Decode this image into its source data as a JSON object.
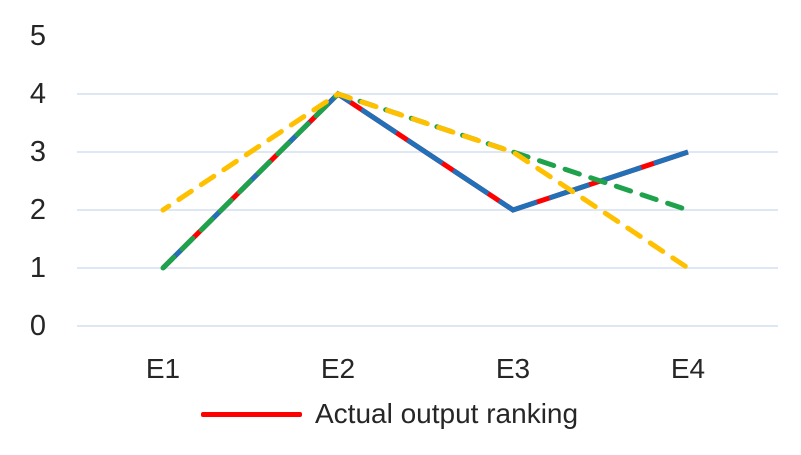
{
  "chart_data": {
    "type": "line",
    "title": "",
    "xlabel": "",
    "ylabel": "",
    "categories": [
      "E1",
      "E2",
      "E3",
      "E4"
    ],
    "series": [
      {
        "id": "actual-output-ranking",
        "name": "Actual output ranking",
        "color": "#FF0000",
        "line_style": "solid",
        "values": [
          1,
          4,
          2,
          3
        ],
        "in_legend": true
      },
      {
        "id": "series-blue",
        "color": "#2170B8",
        "line_style": "long-dash",
        "values": [
          1,
          4,
          2,
          3
        ],
        "in_legend": false
      },
      {
        "id": "series-green",
        "color": "#1FA24C",
        "line_style": "dash",
        "values": [
          1,
          4,
          3,
          2
        ],
        "in_legend": false
      },
      {
        "id": "series-yellow",
        "color": "#FFC000",
        "line_style": "dash",
        "values": [
          2,
          4,
          3,
          1
        ],
        "in_legend": false
      }
    ],
    "ylim": [
      0,
      5
    ],
    "yticks": [
      5,
      4,
      3,
      2,
      1,
      0
    ],
    "gridlines_at": [
      4,
      3,
      2,
      1,
      0
    ],
    "grid_on": true,
    "grid_color": "#dde8f4",
    "axis_text_color": "#262626",
    "legend_position": "bottom-center"
  },
  "legend": {
    "label": "Actual output ranking",
    "line_color": "#FF0000"
  }
}
